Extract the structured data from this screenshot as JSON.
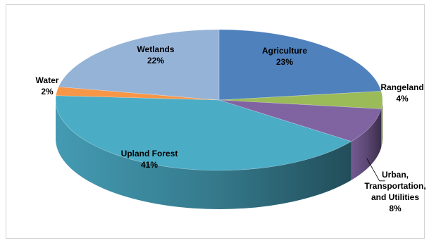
{
  "chart_data": {
    "type": "pie",
    "style": "3d",
    "slices": [
      {
        "label": "Agriculture",
        "pct_label": "23%",
        "value": 23,
        "color": "#4F81BD"
      },
      {
        "label": "Rangeland",
        "pct_label": "4%",
        "value": 4,
        "color": "#9BBB59"
      },
      {
        "label": "Urban, Transportation, and Utilities",
        "label_lines": [
          "Urban,",
          "Transportation,",
          "and Utilities"
        ],
        "pct_label": "8%",
        "value": 8,
        "color": "#8064A2"
      },
      {
        "label": "Upland Forest",
        "pct_label": "41%",
        "value": 41,
        "color": "#4BACC6"
      },
      {
        "label": "Water",
        "pct_label": "2%",
        "value": 2,
        "color": "#F79646"
      },
      {
        "label": "Wetlands",
        "pct_label": "22%",
        "value": 22,
        "color": "#95B3D7"
      }
    ]
  }
}
